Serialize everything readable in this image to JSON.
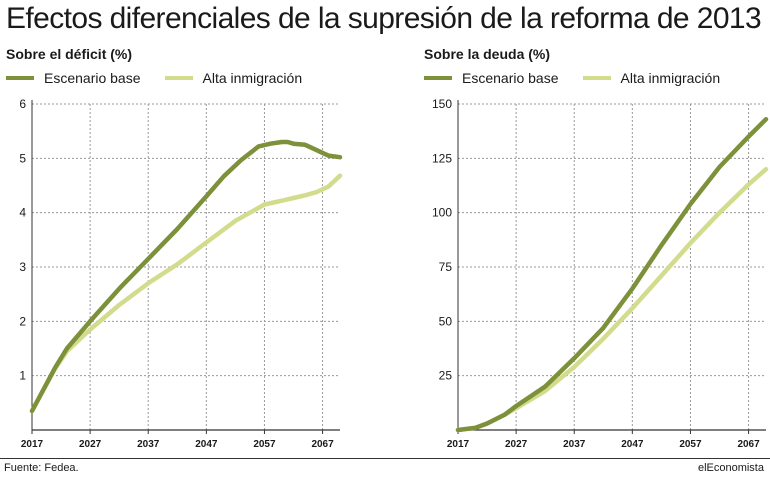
{
  "title": "Efectos diferenciales de la supresión de la reforma de 2013",
  "source": "Fuente: Fedea.",
  "brand": "elEconomista",
  "colors": {
    "base": "#7c913a",
    "alta": "#d3dc8c",
    "grid": "#9a9a9a",
    "axis": "#333333"
  },
  "chart_data": [
    {
      "type": "line",
      "title": "Sobre el déficit (%)",
      "ylim": [
        0,
        6
      ],
      "yticks": [
        1,
        2,
        3,
        4,
        5,
        6
      ],
      "xlim": [
        2017,
        2070
      ],
      "xticks": [
        2017,
        2027,
        2037,
        2047,
        2057,
        2067
      ],
      "grid": true,
      "legend_position": "top-left",
      "series": [
        {
          "name": "Escenario base",
          "x": [
            2017,
            2019,
            2021,
            2023,
            2027,
            2032,
            2037,
            2042,
            2047,
            2050,
            2053,
            2056,
            2058,
            2060,
            2061,
            2062,
            2064,
            2066,
            2067,
            2068,
            2070
          ],
          "y": [
            0.35,
            0.75,
            1.15,
            1.5,
            2.0,
            2.6,
            3.15,
            3.7,
            4.3,
            4.67,
            4.97,
            5.22,
            5.27,
            5.3,
            5.3,
            5.27,
            5.25,
            5.15,
            5.1,
            5.05,
            5.02
          ]
        },
        {
          "name": "Alta inmigración",
          "x": [
            2017,
            2019,
            2021,
            2023,
            2027,
            2032,
            2037,
            2042,
            2047,
            2052,
            2057,
            2060,
            2062,
            2064,
            2066,
            2068,
            2070
          ],
          "y": [
            0.35,
            0.75,
            1.13,
            1.45,
            1.85,
            2.3,
            2.7,
            3.05,
            3.45,
            3.85,
            4.15,
            4.22,
            4.27,
            4.32,
            4.38,
            4.48,
            4.68
          ]
        }
      ]
    },
    {
      "type": "line",
      "title": "Sobre la deuda (%)",
      "ylim": [
        0,
        150
      ],
      "yticks": [
        25,
        50,
        75,
        100,
        125,
        150
      ],
      "xlim": [
        2017,
        2070
      ],
      "xticks": [
        2017,
        2027,
        2037,
        2047,
        2057,
        2067
      ],
      "grid": true,
      "legend_position": "top-left",
      "series": [
        {
          "name": "Escenario base",
          "x": [
            2017,
            2020,
            2022,
            2025,
            2027,
            2032,
            2037,
            2042,
            2047,
            2052,
            2057,
            2062,
            2067,
            2070
          ],
          "y": [
            0,
            1,
            3,
            7,
            11,
            20,
            33,
            47,
            65,
            85,
            104,
            121,
            135,
            143
          ]
        },
        {
          "name": "Alta inmigración",
          "x": [
            2017,
            2020,
            2022,
            2025,
            2027,
            2032,
            2037,
            2042,
            2047,
            2052,
            2057,
            2062,
            2067,
            2070
          ],
          "y": [
            0,
            1,
            3,
            7,
            10,
            18,
            29,
            42,
            56,
            71,
            86,
            100,
            113,
            120
          ]
        }
      ]
    }
  ]
}
